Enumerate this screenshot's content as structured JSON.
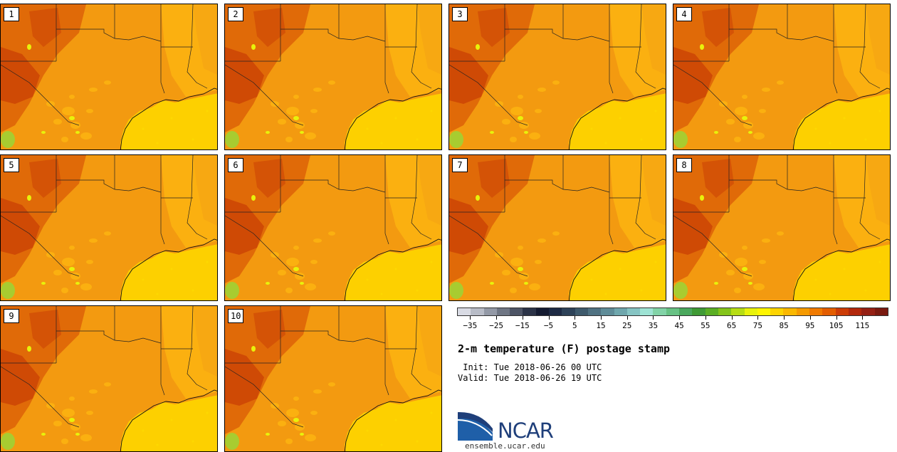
{
  "panels": [
    {
      "label": "1"
    },
    {
      "label": "2"
    },
    {
      "label": "3"
    },
    {
      "label": "4"
    },
    {
      "label": "5"
    },
    {
      "label": "6"
    },
    {
      "label": "7"
    },
    {
      "label": "8"
    },
    {
      "label": "9"
    },
    {
      "label": "10"
    }
  ],
  "colorbar": {
    "colors": [
      "#d9dbe4",
      "#b8bcc7",
      "#9399a6",
      "#6f7684",
      "#4e5566",
      "#2b3347",
      "#141b31",
      "#1d2a44",
      "#2d4258",
      "#3e5a6c",
      "#507282",
      "#5f8c98",
      "#6fa7ad",
      "#86c4c3",
      "#9ee3d4",
      "#82d3a7",
      "#67c184",
      "#4aa85d",
      "#3f9a35",
      "#5aae24",
      "#84c41a",
      "#b6dd14",
      "#e8f20b",
      "#fff500",
      "#fdd400",
      "#fab800",
      "#f59a00",
      "#f07a00",
      "#e35d00",
      "#cc3c06",
      "#b2280c",
      "#952014",
      "#7a1a10"
    ],
    "ticks": [
      "−35",
      "−25",
      "−15",
      "−5",
      "5",
      "15",
      "25",
      "35",
      "45",
      "55",
      "65",
      "75",
      "85",
      "95",
      "105",
      "115"
    ],
    "min": -40,
    "max": 125
  },
  "title": "2-m temperature (F) postage stamp",
  "init": " Init: Tue 2018-06-26 00 UTC",
  "valid": "Valid: Tue 2018-06-26 19 UTC",
  "logo": {
    "text": "NCAR",
    "colors": {
      "blue": "#1f5fa8",
      "navy": "#1f3f7a"
    }
  },
  "site": "ensemble.ucar.edu",
  "map_colors": {
    "gulf": "#fdd000",
    "land_base": "#f39a10",
    "hot": "#e06a08",
    "hotter": "#cf4a05",
    "cool": "#fbb010",
    "cooler": "#fdd800",
    "coolest": "#e8f20b",
    "green": "#a8cc30"
  }
}
